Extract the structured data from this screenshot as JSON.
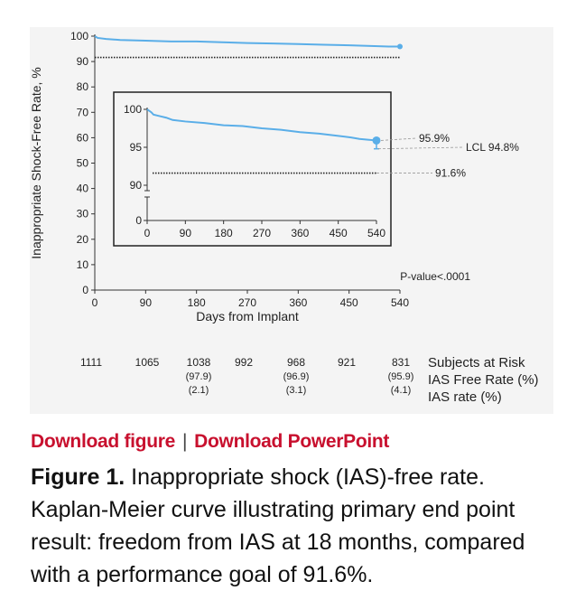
{
  "links": {
    "download_figure": "Download figure",
    "separator": "|",
    "download_powerpoint": "Download PowerPoint"
  },
  "caption": {
    "label": "Figure 1.",
    "text": " Inappropriate shock (IAS)-free rate. Kaplan-Meier curve illustrating primary end point result: freedom from IAS at 18 months, compared with a performance goal of 91.6%."
  },
  "colors": {
    "curve": "#5aaee8",
    "link": "#c8102e",
    "panel": "#f4f4f4"
  },
  "chart_data": [
    {
      "type": "line",
      "xlabel": "Days from Implant",
      "ylabel": "Inappropriate Shock-Free Rate, %",
      "xlim": [
        0,
        540
      ],
      "ylim": [
        0,
        100
      ],
      "x_ticks": [
        0,
        90,
        180,
        270,
        360,
        450,
        540
      ],
      "y_ticks": [
        0,
        10,
        20,
        30,
        40,
        50,
        60,
        70,
        80,
        90,
        100
      ],
      "series": [
        {
          "x": [
            0,
            5,
            20,
            45,
            90,
            135,
            180,
            225,
            270,
            315,
            360,
            405,
            450,
            495,
            520,
            540
          ],
          "y": [
            100,
            99.3,
            98.9,
            98.5,
            98.2,
            97.9,
            97.9,
            97.6,
            97.3,
            97.1,
            96.9,
            96.6,
            96.4,
            96.1,
            95.9,
            95.9
          ]
        },
        {
          "x": [
            0,
            540
          ],
          "y": [
            91.6,
            91.6
          ],
          "style": "dotted"
        }
      ],
      "annotations": [
        "P-value<.0001"
      ]
    },
    {
      "type": "line",
      "role": "inset",
      "xlim": [
        0,
        540
      ],
      "x_ticks": [
        0,
        90,
        180,
        270,
        360,
        450,
        540
      ],
      "y_tick_labels": [
        "100",
        "95",
        "90",
        "0"
      ],
      "series": [
        {
          "x": [
            0,
            5,
            10,
            15,
            30,
            45,
            60,
            90,
            135,
            180,
            225,
            270,
            315,
            360,
            405,
            450,
            480,
            500,
            520,
            540
          ],
          "y": [
            100,
            99.8,
            99.6,
            99.3,
            99.1,
            98.9,
            98.6,
            98.4,
            98.2,
            97.9,
            97.8,
            97.5,
            97.3,
            97.0,
            96.8,
            96.5,
            96.3,
            96.1,
            96.0,
            95.9
          ]
        },
        {
          "x": [
            0,
            540
          ],
          "y": [
            91.6,
            91.6
          ],
          "style": "dotted"
        }
      ],
      "annotations": [
        "95.9%",
        "LCL 94.8%",
        "91.6%"
      ]
    }
  ],
  "risk_table": {
    "row_labels": [
      "Subjects at Risk",
      "IAS Free Rate (%)",
      "IAS rate (%)"
    ],
    "columns": [
      {
        "subjects": "1111",
        "free": "",
        "ias": ""
      },
      {
        "subjects": "1065",
        "free": "",
        "ias": ""
      },
      {
        "subjects": "1038",
        "free": "(97.9)",
        "ias": "(2.1)"
      },
      {
        "subjects": "992",
        "free": "",
        "ias": ""
      },
      {
        "subjects": "968",
        "free": "(96.9)",
        "ias": "(3.1)"
      },
      {
        "subjects": "921",
        "free": "",
        "ias": ""
      },
      {
        "subjects": "831",
        "free": "(95.9)",
        "ias": "(4.1)"
      }
    ]
  }
}
